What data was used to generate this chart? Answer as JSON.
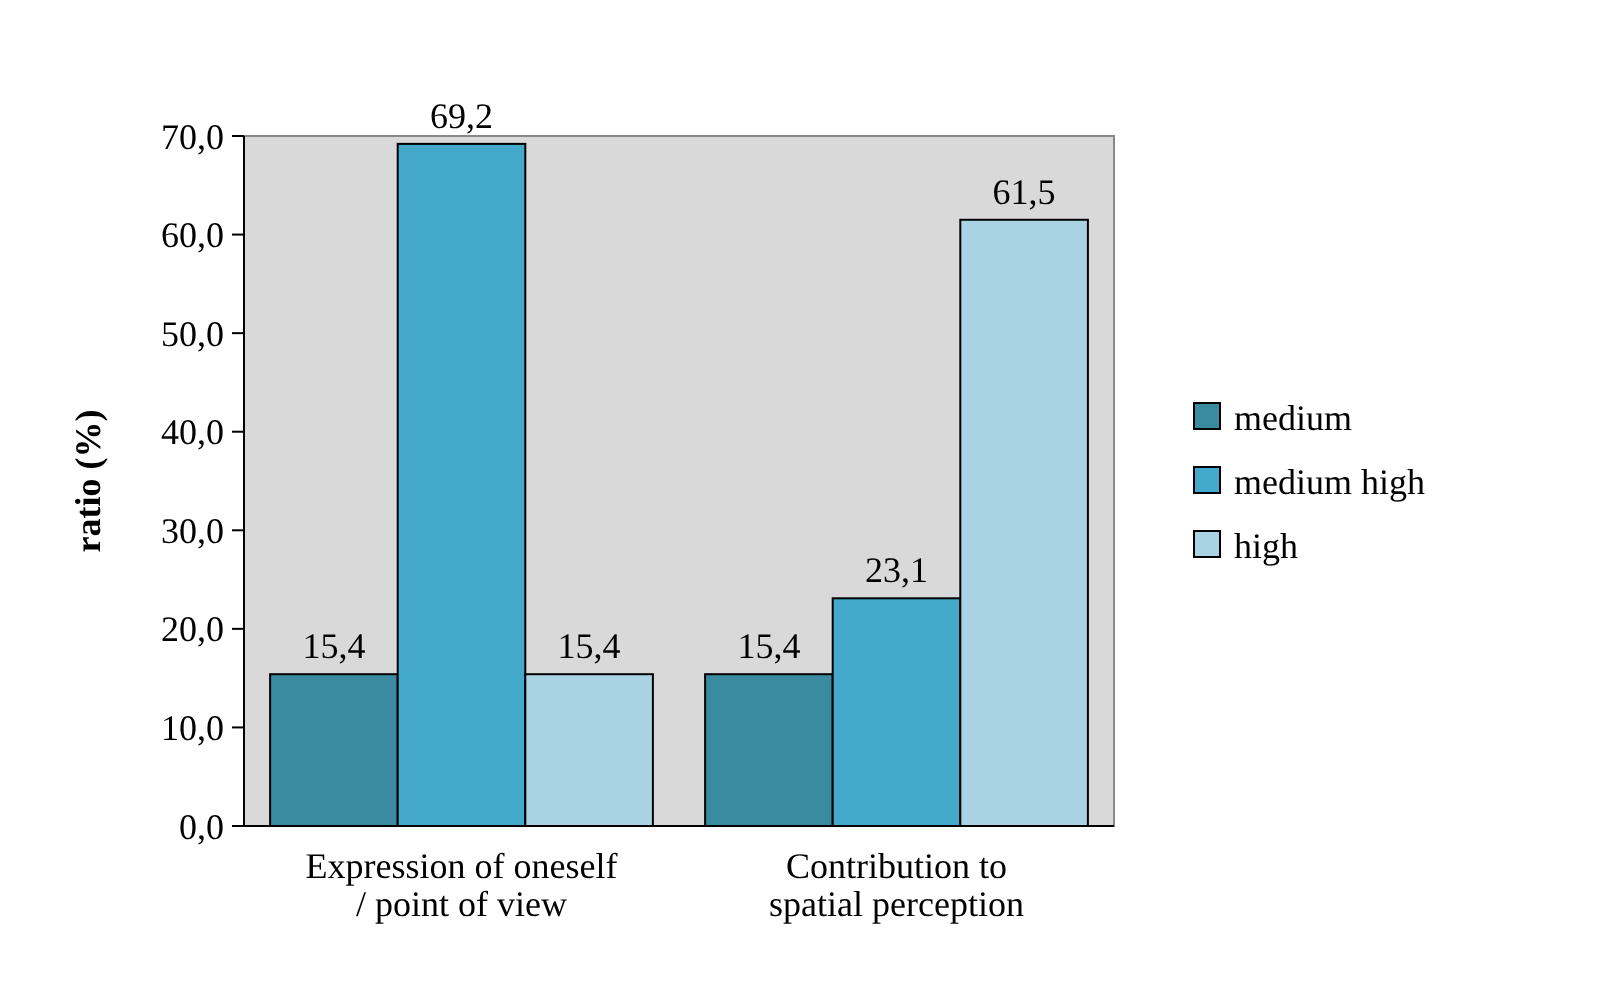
{
  "chart_data": {
    "type": "bar",
    "ylabel": "ratio (%)",
    "categories": [
      "Expression of oneself / point of view",
      "Contribution to spatial perception"
    ],
    "series": [
      {
        "name": "medium",
        "color": "#3a8aa0",
        "values": [
          15.4,
          15.4
        ],
        "value_labels": [
          "15,4",
          "15,4"
        ]
      },
      {
        "name": "medium high",
        "color": "#45a9cb",
        "values": [
          69.2,
          23.1
        ],
        "value_labels": [
          "69,2",
          "23,1"
        ]
      },
      {
        "name": "high",
        "color": "#a9d3e3",
        "values": [
          15.4,
          61.5
        ],
        "value_labels": [
          "15,4",
          "61,5"
        ]
      }
    ],
    "ylim": [
      0,
      70
    ],
    "yticks": [
      {
        "value": 0,
        "label": "0,0"
      },
      {
        "value": 10,
        "label": "10,0"
      },
      {
        "value": 20,
        "label": "20,0"
      },
      {
        "value": 30,
        "label": "30,0"
      },
      {
        "value": 40,
        "label": "40,0"
      },
      {
        "value": 50,
        "label": "50,0"
      },
      {
        "value": 60,
        "label": "60,0"
      },
      {
        "value": 70,
        "label": "70,0"
      }
    ],
    "grid": false,
    "legend": "right"
  }
}
